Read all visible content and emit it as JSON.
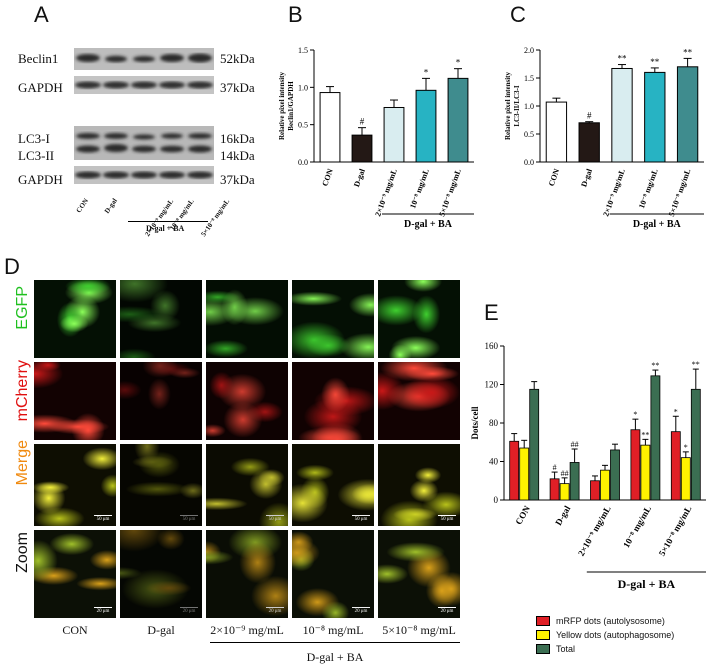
{
  "panels": {
    "A": "A",
    "B": "B",
    "C": "C",
    "D": "D",
    "E": "E"
  },
  "blots": {
    "rows": [
      {
        "name": "Beclin1",
        "kda": "52kDa"
      },
      {
        "name": "GAPDH",
        "kda": "37kDa"
      },
      {
        "name": "LC3-I",
        "kda": "16kDa"
      },
      {
        "name": "LC3-II",
        "kda": "14kDa"
      },
      {
        "name": "GAPDH",
        "kda": "37kDa"
      }
    ],
    "lanes": [
      "CON",
      "D-gal",
      "2×10⁻⁹ mg/mL",
      "10⁻⁸ mg/mL",
      "5×10⁻⁸ mg/mL"
    ],
    "group_label": "D-gal + BA"
  },
  "chart_data": [
    {
      "id": "B",
      "type": "bar",
      "categories": [
        "CON",
        "D-gal",
        "2×10⁻⁹ mg/mL",
        "10⁻⁸ mg/mL",
        "5×10⁻⁸ mg/mL"
      ],
      "values": [
        0.93,
        0.36,
        0.73,
        0.96,
        1.12
      ],
      "errors": [
        0.08,
        0.1,
        0.1,
        0.16,
        0.13
      ],
      "significance": [
        "",
        "#",
        "",
        "*",
        "*"
      ],
      "ylabel": "Relative pixel intensity Beclin1/GAPDH",
      "ylabel_lines": [
        "Relative pixel intensity",
        "Beclin1/GAPDH"
      ],
      "ylim": [
        0,
        1.5
      ],
      "yticks": [
        "0.0",
        "0.5",
        "1.0",
        "1.5"
      ],
      "colors": [
        "#ffffff",
        "#231815",
        "#d9edf0",
        "#27b3c3",
        "#3f8c8e"
      ],
      "group_label": "D-gal + BA"
    },
    {
      "id": "C",
      "type": "bar",
      "categories": [
        "CON",
        "D-gal",
        "2×10⁻⁹ mg/mL",
        "10⁻⁸ mg/mL",
        "5×10⁻⁸ mg/mL"
      ],
      "values": [
        1.07,
        0.7,
        1.67,
        1.6,
        1.7
      ],
      "errors": [
        0.07,
        0.02,
        0.07,
        0.08,
        0.15
      ],
      "significance": [
        "",
        "#",
        "**",
        "**",
        "**"
      ],
      "ylabel": "Relative pixel intensity LC3-II/LC3-I",
      "ylabel_lines": [
        "Relative pixel intensity",
        "LC3-II/LC3-I"
      ],
      "ylim": [
        0,
        2.0
      ],
      "yticks": [
        "0.0",
        "0.5",
        "1.0",
        "1.5",
        "2.0"
      ],
      "colors": [
        "#ffffff",
        "#231815",
        "#d9edf0",
        "#27b3c3",
        "#3f8c8e"
      ],
      "group_label": "D-gal + BA"
    },
    {
      "id": "E",
      "type": "bar",
      "categories": [
        "CON",
        "D-gal",
        "2×10⁻⁹ mg/mL",
        "10⁻⁸ mg/mL",
        "5×10⁻⁸ mg/mL"
      ],
      "series": [
        {
          "name": "mRFP dots (autolysosome)",
          "color": "#e01f26",
          "values": [
            61,
            22,
            20,
            73,
            71
          ],
          "errors": [
            8,
            7,
            5,
            11,
            16
          ],
          "significance": [
            "",
            "#",
            "",
            "*",
            "*"
          ]
        },
        {
          "name": "Yellow dots (autophagosome)",
          "color": "#fff200",
          "values": [
            54,
            17,
            31,
            57,
            44
          ],
          "errors": [
            8,
            6,
            5,
            6,
            6
          ],
          "significance": [
            "",
            "##",
            "",
            "**",
            "*"
          ]
        },
        {
          "name": "Total",
          "color": "#3b6e52",
          "values": [
            115,
            39,
            52,
            129,
            115
          ],
          "errors": [
            8,
            14,
            6,
            6,
            21
          ],
          "significance": [
            "",
            "##",
            "",
            "**",
            "**"
          ]
        }
      ],
      "ylabel": "Dots/cell",
      "ylim": [
        0,
        160
      ],
      "yticks": [
        "0",
        "40",
        "80",
        "120",
        "160"
      ],
      "group_label": "D-gal + BA",
      "legend_position": "bottom-right"
    }
  ],
  "micrographs": {
    "rows": [
      "EGFP",
      "mCherry",
      "Merge",
      "Zoom"
    ],
    "row_colors": [
      "#1fc01f",
      "#e01010",
      "#f08a10",
      "#111111"
    ],
    "columns": [
      "CON",
      "D-gal",
      "2×10⁻⁹ mg/mL",
      "10⁻⁸ mg/mL",
      "5×10⁻⁸ mg/mL"
    ],
    "scale_small": "50 μm",
    "scale_zoom": "20 μm",
    "group_label": "D-gal + BA"
  }
}
